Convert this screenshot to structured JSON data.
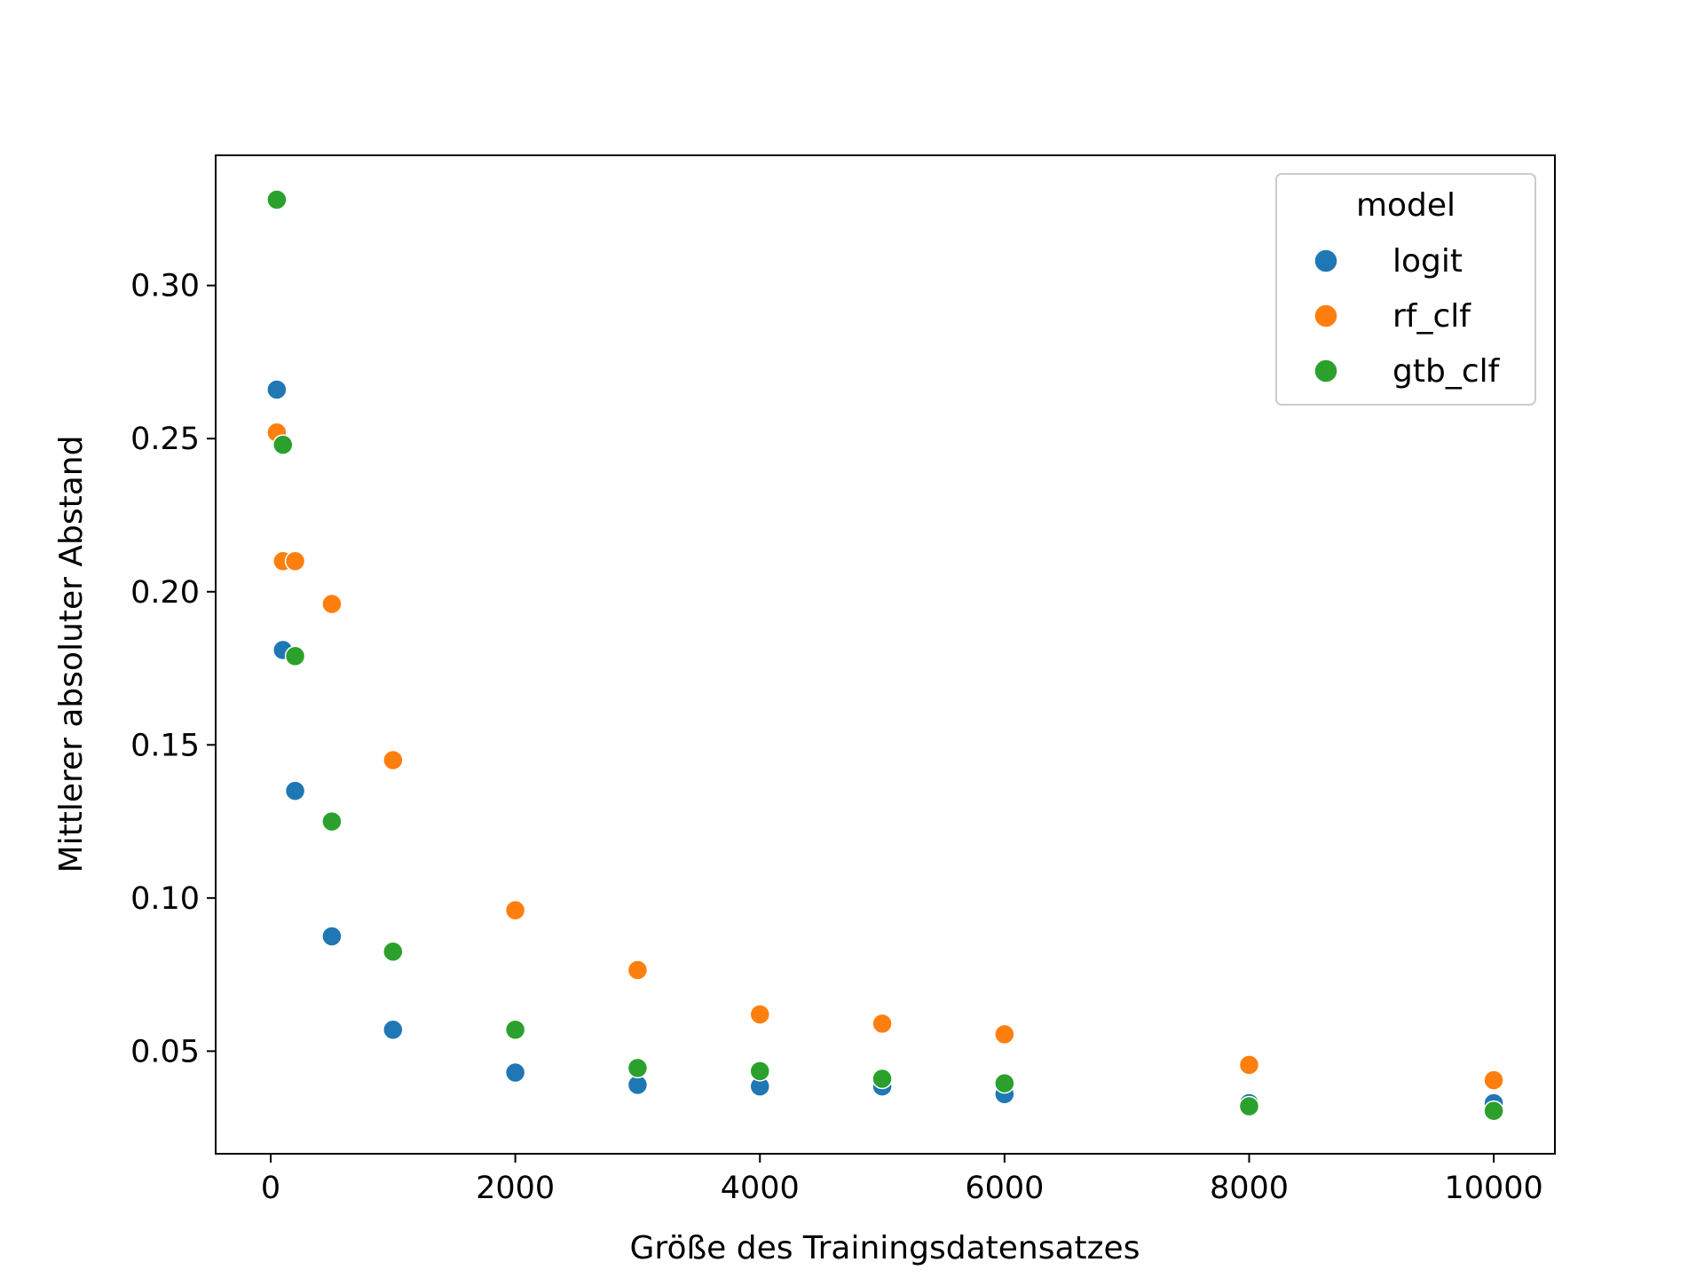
{
  "chart_data": {
    "type": "scatter",
    "title": "",
    "xlabel": "Größe des Trainingsdatensatzes",
    "ylabel": "Mittlerer absoluter Abstand",
    "xlim": [
      -450,
      10500
    ],
    "ylim": [
      0.0165,
      0.3425
    ],
    "xticks": [
      0,
      2000,
      4000,
      6000,
      8000,
      10000
    ],
    "yticks": [
      0.05,
      0.1,
      0.15,
      0.2,
      0.25,
      0.3
    ],
    "xtick_labels": [
      "0",
      "2000",
      "4000",
      "6000",
      "8000",
      "10000"
    ],
    "ytick_labels": [
      "0.05",
      "0.10",
      "0.15",
      "0.20",
      "0.25",
      "0.30"
    ],
    "grid": false,
    "legend": {
      "title": "model",
      "placement": "top-right"
    },
    "series": [
      {
        "name": "logit",
        "color": "#1f77b4",
        "x": [
          50,
          100,
          200,
          500,
          1000,
          2000,
          3000,
          4000,
          5000,
          6000,
          8000,
          10000
        ],
        "y": [
          0.266,
          0.181,
          0.135,
          0.0875,
          0.057,
          0.043,
          0.039,
          0.0385,
          0.0385,
          0.036,
          0.033,
          0.033
        ]
      },
      {
        "name": "rf_clf",
        "color": "#ff7f0e",
        "x": [
          50,
          100,
          200,
          500,
          1000,
          2000,
          3000,
          4000,
          5000,
          6000,
          8000,
          10000
        ],
        "y": [
          0.252,
          0.21,
          0.21,
          0.196,
          0.145,
          0.096,
          0.0765,
          0.062,
          0.059,
          0.0555,
          0.0455,
          0.0405
        ]
      },
      {
        "name": "gtb_clf",
        "color": "#2ca02c",
        "x": [
          50,
          100,
          200,
          500,
          1000,
          2000,
          3000,
          4000,
          5000,
          6000,
          8000,
          10000
        ],
        "y": [
          0.328,
          0.248,
          0.179,
          0.125,
          0.0825,
          0.057,
          0.0445,
          0.0435,
          0.041,
          0.0395,
          0.032,
          0.0305
        ]
      }
    ]
  }
}
